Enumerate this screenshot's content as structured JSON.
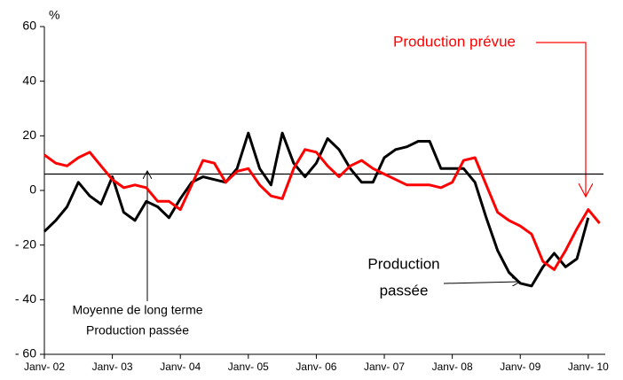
{
  "chart_data": {
    "type": "line",
    "y_unit": "%",
    "x": [
      0,
      2,
      4,
      6,
      8,
      10,
      12,
      14,
      16,
      18,
      20,
      22,
      24,
      26,
      28,
      30,
      32,
      34,
      36,
      38,
      40,
      42,
      44,
      46,
      48,
      50,
      52,
      54,
      56,
      58,
      60,
      62,
      64,
      66,
      68,
      70,
      72,
      74,
      76,
      78,
      80,
      82,
      84,
      86,
      88,
      90,
      92,
      94,
      96,
      98
    ],
    "series": [
      {
        "color": "#000000",
        "values": [
          -15,
          -11,
          -6,
          3,
          -2,
          -5,
          5,
          -8,
          -11,
          -4,
          -6,
          -10,
          -3,
          3,
          5,
          4,
          3,
          8,
          21,
          8,
          2,
          21,
          10,
          5,
          10,
          19,
          15,
          8,
          3,
          3,
          12,
          15,
          16,
          18,
          18,
          8,
          8,
          8,
          3,
          -10,
          -22,
          -30,
          -34,
          -35,
          -28,
          -23,
          -28,
          -25,
          -10,
          null
        ]
      },
      {
        "color": "#ff0000",
        "values": [
          13,
          10,
          9,
          12,
          14,
          9,
          4,
          1,
          2,
          1,
          -4,
          -4,
          -7,
          2,
          11,
          10,
          3,
          7,
          8,
          2,
          -2,
          -3,
          8,
          15,
          14,
          9,
          5,
          9,
          11,
          8,
          6,
          4,
          2,
          2,
          2,
          1,
          3,
          11,
          12,
          2,
          -8,
          -11,
          -13,
          -16,
          -26,
          -29,
          -22,
          -14,
          -7,
          -12
        ]
      }
    ],
    "reference_line": 6,
    "annotations": [
      "Production prévue",
      "Production",
      "passée",
      "Moyenne de long terme",
      "Production passée"
    ],
    "xlim": [
      0,
      99
    ],
    "xticks": [
      {
        "value": 0,
        "label": "Janv- 02"
      },
      {
        "value": 12,
        "label": "Janv- 03"
      },
      {
        "value": 24,
        "label": "Janv- 04"
      },
      {
        "value": 36,
        "label": "Janv- 05"
      },
      {
        "value": 48,
        "label": "Janv- 06"
      },
      {
        "value": 60,
        "label": "Janv- 07"
      },
      {
        "value": 72,
        "label": "Janv- 08"
      },
      {
        "value": 84,
        "label": "Janv- 09"
      },
      {
        "value": 96,
        "label": "Janv- 10"
      }
    ],
    "ylim": [
      -60,
      60
    ],
    "yticks": [
      {
        "value": -60,
        "label": "- 60"
      },
      {
        "value": -40,
        "label": "- 40"
      },
      {
        "value": -20,
        "label": "- 20"
      },
      0,
      20,
      40,
      60
    ]
  }
}
